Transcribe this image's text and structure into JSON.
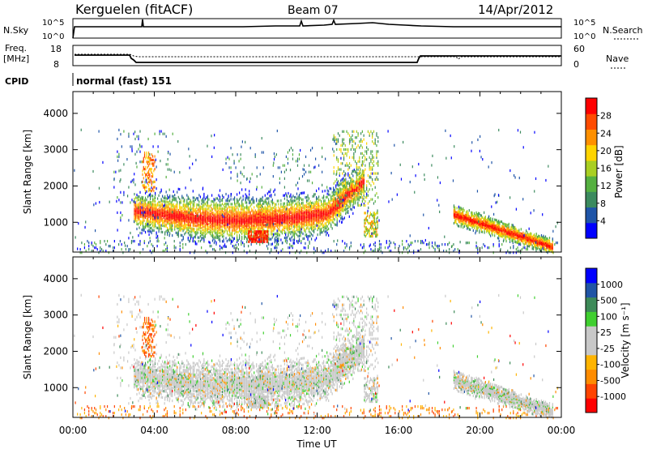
{
  "header": {
    "station": "Kerguelen (fitACF)",
    "beam": "Beam 07",
    "date": "14/Apr/2012",
    "cpid_label": "CPID",
    "cpid_value": "normal (fast) 151"
  },
  "top_panels": {
    "nsky_label": "N.Sky",
    "nsky_ticks": [
      "10^5",
      "10^0"
    ],
    "nsearch_label": "N.Search",
    "nsearch_ticks": [
      "10^5",
      "10^0"
    ],
    "freq_label": "Freq.",
    "freq_unit": "[MHz]",
    "freq_ticks": [
      "18",
      "8"
    ],
    "nave_label": "Nave",
    "nave_ticks": [
      "60",
      "0"
    ]
  },
  "colors": {
    "power": [
      "#0000ff",
      "#1f55a8",
      "#3b8a5e",
      "#55b040",
      "#a9cf22",
      "#ffd400",
      "#ff9000",
      "#ff4b00",
      "#ff0000"
    ],
    "velocity": [
      "#ff0000",
      "#ff4400",
      "#ff8c00",
      "#ffb400",
      "#c8c8c8",
      "#c8c8c8",
      "#3fcf2f",
      "#3d8a58",
      "#2155a5",
      "#0000ff"
    ]
  },
  "chart_data": [
    {
      "type": "heatmap",
      "name": "power",
      "ylabel": "Slant Range [km]",
      "xlabel": "",
      "x_ticks": [
        "00:00",
        "04:00",
        "08:00",
        "12:00",
        "16:00",
        "20:00",
        "00:00"
      ],
      "y_ticks": [
        "1000",
        "2000",
        "3000",
        "4000"
      ],
      "xlim": [
        0,
        24
      ],
      "ylim": [
        180,
        4600
      ],
      "colorbar_label": "Power [dB]",
      "colorbar_ticks": [
        "4",
        "8",
        "12",
        "16",
        "20",
        "24",
        "28"
      ],
      "colorbar_range": [
        0,
        32
      ]
    },
    {
      "type": "heatmap",
      "name": "velocity",
      "ylabel": "Slant Range [km]",
      "xlabel": "Time UT",
      "x_ticks": [
        "00:00",
        "04:00",
        "08:00",
        "12:00",
        "16:00",
        "20:00",
        "00:00"
      ],
      "y_ticks": [
        "1000",
        "2000",
        "3000",
        "4000"
      ],
      "xlim": [
        0,
        24
      ],
      "ylim": [
        180,
        4600
      ],
      "colorbar_label": "Velocity [m s⁻¹]",
      "colorbar_ticks": [
        "1000",
        "500",
        "100",
        "25",
        "-25",
        "-100",
        "-500",
        "-1000"
      ]
    }
  ]
}
